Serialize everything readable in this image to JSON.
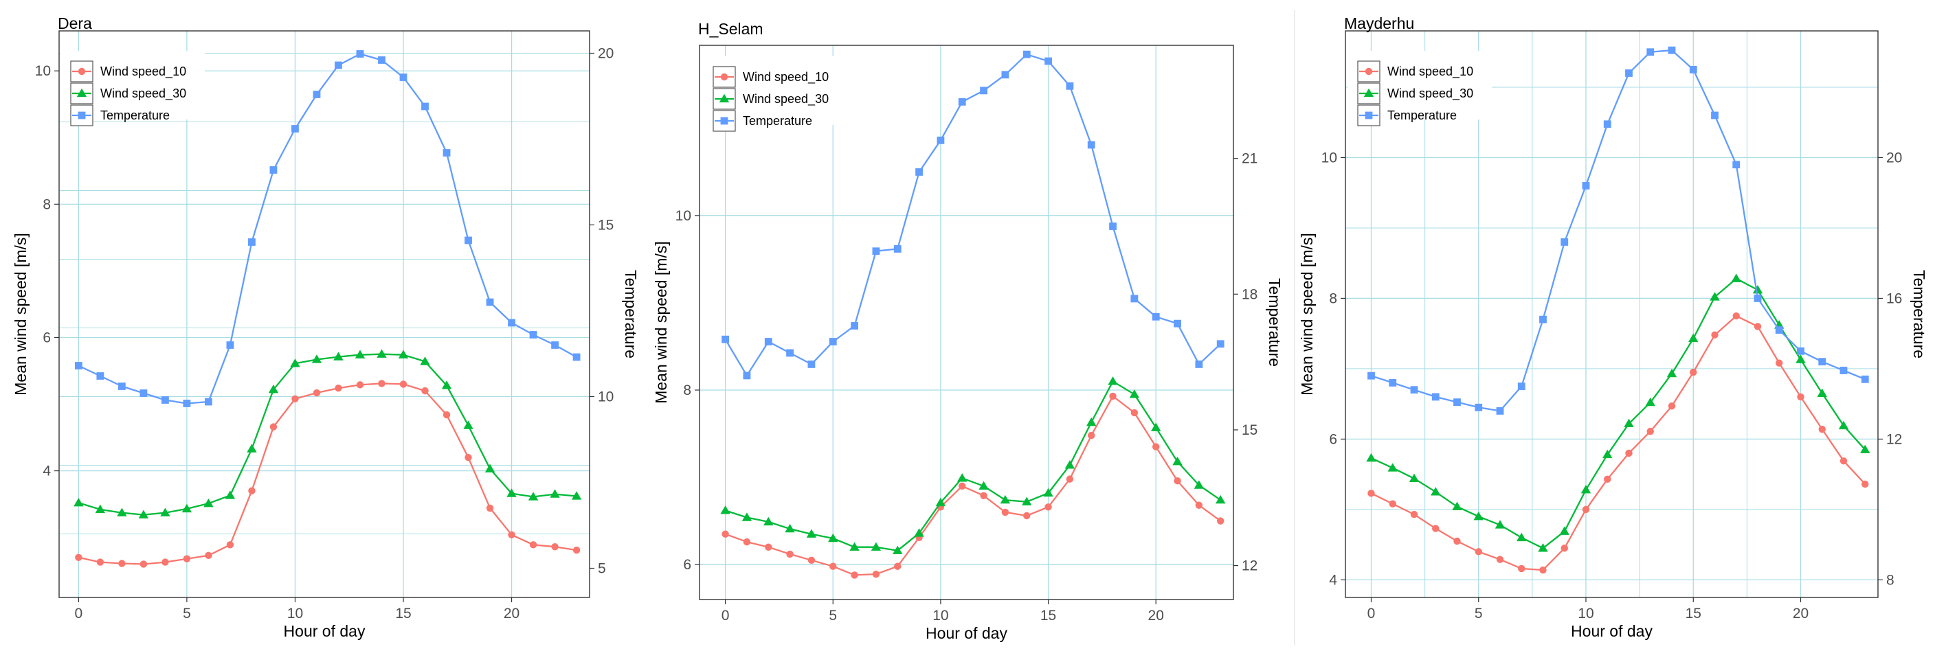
{
  "colors": {
    "wind10": "#f8766d",
    "wind30": "#00ba38",
    "temperature": "#619cff",
    "grid": "#a8dde4",
    "axis": "#333333",
    "text": "#4d4d4d",
    "title": "#000000"
  },
  "chart_data": [
    {
      "type": "line",
      "title": "Dera",
      "xlabel": "Hour of day",
      "ylabel": "Mean wind speed [m/s]",
      "y2label": "Temperature",
      "x": [
        0,
        1,
        2,
        3,
        4,
        5,
        6,
        7,
        8,
        9,
        10,
        11,
        12,
        13,
        14,
        15,
        16,
        17,
        18,
        19,
        20,
        21,
        22,
        23
      ],
      "xlim": [
        -0.9,
        23.6
      ],
      "ylim": [
        2.1,
        10.6
      ],
      "y2lim": [
        4.15,
        20.65
      ],
      "xticks": [
        0,
        5,
        10,
        15,
        20
      ],
      "yticks": [
        4,
        6,
        8,
        10
      ],
      "y2ticks": [
        5,
        10,
        15,
        20
      ],
      "xtick_labels": [
        "0",
        "5",
        "10",
        "15",
        "20"
      ],
      "ytick_labels": [
        "4",
        "6",
        "8",
        "10"
      ],
      "y2tick_labels": [
        "5",
        "10",
        "15",
        "20"
      ],
      "x_minor_grid": [],
      "y_minor_grid": [],
      "y2_grid": [
        6,
        8,
        10,
        12,
        14,
        16,
        18,
        20
      ],
      "grid": true,
      "legend": "top-left",
      "series": [
        {
          "name": "Wind speed_10",
          "axis": "left",
          "marker": "circle",
          "values": [
            2.7,
            2.63,
            2.61,
            2.6,
            2.63,
            2.68,
            2.73,
            2.89,
            3.7,
            4.66,
            5.08,
            5.17,
            5.24,
            5.29,
            5.31,
            5.3,
            5.2,
            4.84,
            4.2,
            3.44,
            3.04,
            2.89,
            2.86,
            2.81
          ]
        },
        {
          "name": "Wind speed_30",
          "axis": "left",
          "marker": "triangle",
          "values": [
            3.52,
            3.42,
            3.37,
            3.34,
            3.37,
            3.43,
            3.51,
            3.63,
            4.33,
            5.22,
            5.61,
            5.67,
            5.71,
            5.74,
            5.75,
            5.74,
            5.64,
            5.28,
            4.68,
            4.03,
            3.66,
            3.61,
            3.65,
            3.62
          ]
        },
        {
          "name": "Temperature",
          "axis": "right",
          "marker": "square",
          "values": [
            10.9,
            10.6,
            10.3,
            10.1,
            9.9,
            9.8,
            9.85,
            11.5,
            14.5,
            16.6,
            17.8,
            18.8,
            19.65,
            19.98,
            19.8,
            19.3,
            18.45,
            17.1,
            14.55,
            12.75,
            12.15,
            11.8,
            11.5,
            11.15
          ]
        }
      ]
    },
    {
      "type": "line",
      "title": "H_Selam",
      "xlabel": "Hour of day",
      "ylabel": "Mean wind speed [m/s]",
      "y2label": "Temperature",
      "x": [
        0,
        1,
        2,
        3,
        4,
        5,
        6,
        7,
        8,
        9,
        10,
        11,
        12,
        13,
        14,
        15,
        16,
        17,
        18,
        19,
        20,
        21,
        22,
        23
      ],
      "xlim": [
        -1.2,
        23.6
      ],
      "ylim": [
        5.6,
        11.95
      ],
      "y2lim": [
        11.25,
        23.5
      ],
      "xticks": [
        0,
        5,
        10,
        15,
        20
      ],
      "yticks": [
        6,
        8,
        10
      ],
      "y2ticks": [
        12,
        15,
        18,
        21
      ],
      "xtick_labels": [
        "0",
        "5",
        "10",
        "15",
        "20"
      ],
      "ytick_labels": [
        "6",
        "8",
        "10"
      ],
      "y2tick_labels": [
        "12",
        "15",
        "18",
        "21"
      ],
      "x_minor_grid": [],
      "y_minor_grid": [],
      "y2_grid": [],
      "grid": true,
      "legend": "top-left",
      "series": [
        {
          "name": "Wind speed_10",
          "axis": "left",
          "marker": "circle",
          "values": [
            6.35,
            6.26,
            6.2,
            6.12,
            6.05,
            5.98,
            5.88,
            5.89,
            5.98,
            6.31,
            6.66,
            6.9,
            6.79,
            6.6,
            6.56,
            6.66,
            6.98,
            7.48,
            7.93,
            7.74,
            7.35,
            6.96,
            6.68,
            6.5
          ]
        },
        {
          "name": "Wind speed_30",
          "axis": "left",
          "marker": "triangle",
          "values": [
            6.62,
            6.54,
            6.49,
            6.41,
            6.35,
            6.3,
            6.2,
            6.2,
            6.16,
            6.36,
            6.71,
            6.99,
            6.9,
            6.74,
            6.72,
            6.82,
            7.14,
            7.63,
            8.1,
            7.95,
            7.57,
            7.18,
            6.91,
            6.74
          ]
        },
        {
          "name": "Temperature",
          "axis": "right",
          "marker": "square",
          "values": [
            17.0,
            16.2,
            16.95,
            16.7,
            16.45,
            16.95,
            17.3,
            18.95,
            19.0,
            20.7,
            21.4,
            22.25,
            22.5,
            22.85,
            23.3,
            23.15,
            22.6,
            21.3,
            19.5,
            17.9,
            17.5,
            17.35,
            16.45,
            16.9
          ]
        }
      ]
    },
    {
      "type": "line",
      "title": "Mayderhu",
      "xlabel": "Hour of day",
      "ylabel": "Mean wind speed [m/s]",
      "y2label": "Temperature",
      "x": [
        0,
        1,
        2,
        3,
        4,
        5,
        6,
        7,
        8,
        9,
        10,
        11,
        12,
        13,
        14,
        15,
        16,
        17,
        18,
        19,
        20,
        21,
        22,
        23
      ],
      "xlim": [
        -1.2,
        23.6
      ],
      "ylim": [
        3.75,
        11.8
      ],
      "y2lim": [
        7.5,
        23.6
      ],
      "xticks": [
        0,
        5,
        10,
        15,
        20
      ],
      "yticks": [
        4,
        6,
        8,
        10
      ],
      "y2ticks": [
        8,
        12,
        16,
        20
      ],
      "xtick_labels": [
        "0",
        "5",
        "10",
        "15",
        "20"
      ],
      "ytick_labels": [
        "4",
        "6",
        "8",
        "10"
      ],
      "y2tick_labels": [
        "8",
        "12",
        "16",
        "20"
      ],
      "x_minor_grid": [
        2.5,
        7.5,
        12.5,
        17.5
      ],
      "y_minor_grid": [
        5,
        7,
        9,
        11
      ],
      "y2_grid": [],
      "grid": true,
      "legend": "top-left",
      "series": [
        {
          "name": "Wind speed_10",
          "axis": "left",
          "marker": "circle",
          "values": [
            5.23,
            5.08,
            4.93,
            4.73,
            4.55,
            4.4,
            4.29,
            4.16,
            4.14,
            4.45,
            5.0,
            5.43,
            5.8,
            6.11,
            6.47,
            6.95,
            7.48,
            7.75,
            7.6,
            7.08,
            6.6,
            6.14,
            5.69,
            5.36
          ]
        },
        {
          "name": "Wind speed_30",
          "axis": "left",
          "marker": "triangle",
          "values": [
            5.73,
            5.59,
            5.44,
            5.25,
            5.04,
            4.9,
            4.78,
            4.6,
            4.45,
            4.69,
            5.28,
            5.78,
            6.22,
            6.52,
            6.93,
            7.43,
            8.02,
            8.28,
            8.12,
            7.62,
            7.13,
            6.65,
            6.19,
            5.85
          ]
        },
        {
          "name": "Temperature",
          "axis": "right",
          "marker": "square",
          "values": [
            13.8,
            13.6,
            13.4,
            13.2,
            13.05,
            12.9,
            12.8,
            13.5,
            15.4,
            17.6,
            19.2,
            20.95,
            22.4,
            23.0,
            23.05,
            22.5,
            21.2,
            19.8,
            16.0,
            15.1,
            14.5,
            14.2,
            13.95,
            13.7
          ]
        }
      ]
    }
  ]
}
